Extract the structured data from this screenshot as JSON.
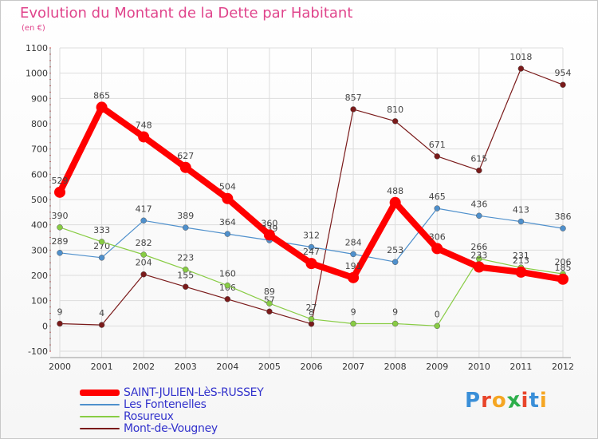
{
  "header": {
    "title": "Evolution du Montant de la Dette par Habitant",
    "unit": "(en €)"
  },
  "logo": {
    "letters": [
      "P",
      "r",
      "o",
      "x",
      "i",
      "t",
      "i"
    ],
    "colors": [
      "#3a8fd8",
      "#e8452b",
      "#f5a623",
      "#2cae4a",
      "#e8452b",
      "#3a8fd8",
      "#f5a623"
    ]
  },
  "chart_data": {
    "type": "line",
    "title": "Evolution du Montant de la Dette par Habitant",
    "ylabel": "(en €)",
    "x": [
      "2000",
      "2001",
      "2002",
      "2003",
      "2004",
      "2005",
      "2006",
      "2007",
      "2008",
      "2009",
      "2010",
      "2011",
      "2012"
    ],
    "ylim": [
      -100,
      1100
    ],
    "yticks": [
      "-100",
      "0",
      "100",
      "200",
      "300",
      "400",
      "500",
      "600",
      "700",
      "800",
      "900",
      "1000",
      "1100"
    ],
    "grid": true,
    "legend_position": "bottom-left",
    "series": [
      {
        "name": "SAINT-JULIEN-LèS-RUSSEY",
        "color": "#ff0000",
        "values": [
          529,
          865,
          748,
          627,
          504,
          360,
          247,
          191,
          488,
          306,
          233,
          213,
          185
        ],
        "labels": [
          "529",
          "865",
          "748",
          "627",
          "504",
          "360",
          "247",
          "191",
          "488",
          "306",
          "233",
          "213",
          "185"
        ]
      },
      {
        "name": "Les Fontenelles",
        "color": "#4f90cc",
        "values": [
          289,
          270,
          417,
          389,
          364,
          339,
          312,
          284,
          253,
          465,
          436,
          413,
          386
        ],
        "labels": [
          "289",
          "270",
          "417",
          "389",
          "364",
          "339",
          "312",
          "284",
          "253",
          "465",
          "436",
          "413",
          "386"
        ]
      },
      {
        "name": "Rosureux",
        "color": "#88cc44",
        "values": [
          390,
          333,
          282,
          223,
          160,
          89,
          27,
          9,
          9,
          0,
          266,
          231,
          206
        ],
        "labels": [
          "390",
          "333",
          "282",
          "223",
          "160",
          "89",
          "27",
          "9",
          "9",
          "0",
          "266",
          "231",
          "206"
        ]
      },
      {
        "name": "Mont-de-Vougney",
        "color": "#7a1a1a",
        "values": [
          9,
          4,
          204,
          155,
          106,
          57,
          8,
          857,
          810,
          671,
          615,
          1018,
          954
        ],
        "labels": [
          "9",
          "4",
          "204",
          "155",
          "106",
          "57",
          "8",
          "857",
          "810",
          "671",
          "615",
          "1018",
          "954"
        ]
      }
    ]
  }
}
